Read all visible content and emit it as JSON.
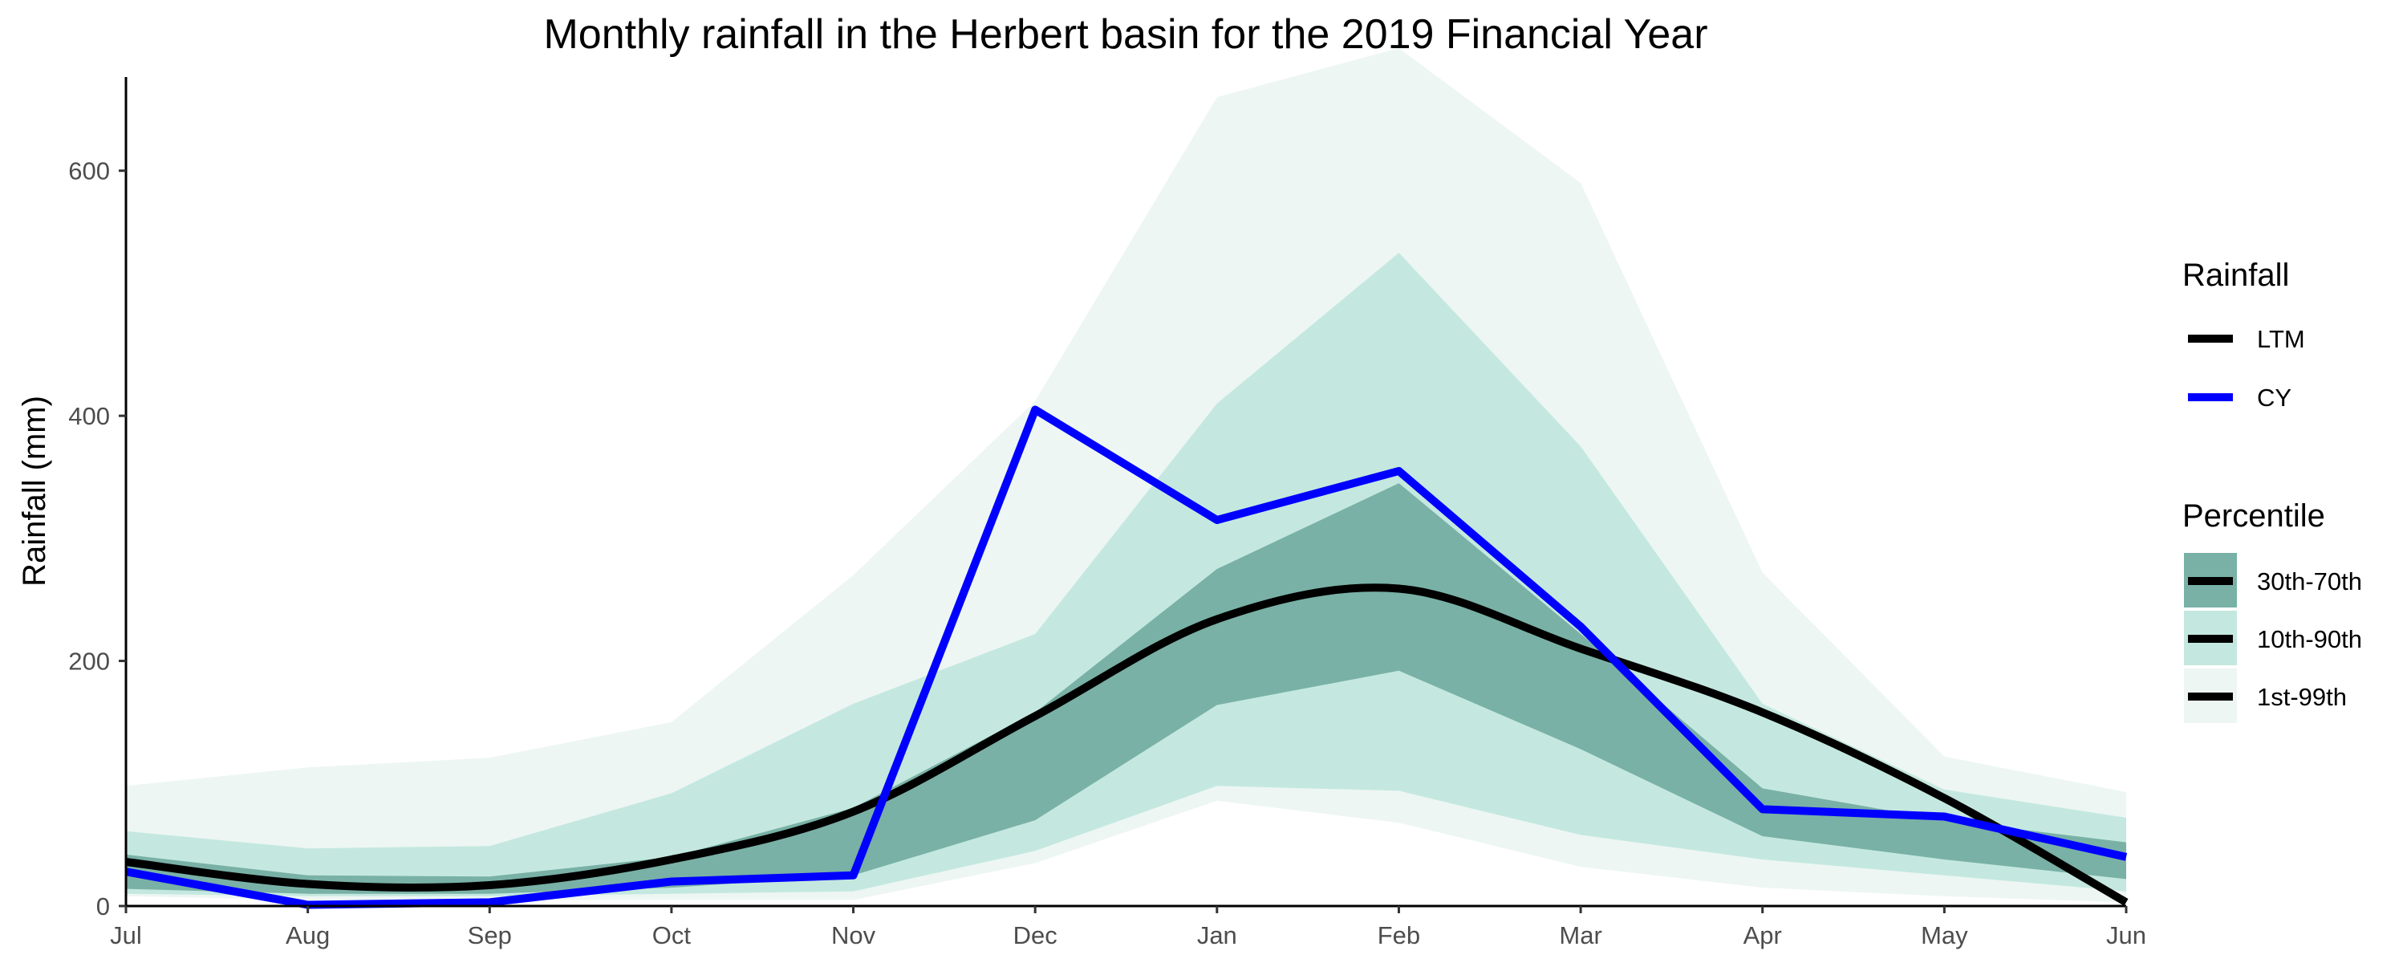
{
  "chart_data": {
    "type": "area",
    "title": "Monthly rainfall in the Herbert basin for the 2019 Financial Year",
    "xlabel": "",
    "ylabel": "Rainfall (mm)",
    "x": [
      "Jul",
      "Aug",
      "Sep",
      "Oct",
      "Nov",
      "Dec",
      "Jan",
      "Feb",
      "Mar",
      "Apr",
      "May",
      "Jun"
    ],
    "ylim": [
      0,
      700
    ],
    "yticks": [
      0,
      200,
      400,
      600
    ],
    "grid": false,
    "legend_position": "right",
    "bands": [
      {
        "name": "1st-99th",
        "color": "#edf6f3",
        "lower": [
          8,
          5,
          5,
          5,
          5,
          35,
          86,
          68,
          32,
          15,
          8,
          3
        ],
        "upper": [
          98,
          113,
          121,
          150,
          270,
          412,
          660,
          700,
          590,
          272,
          122,
          93
        ]
      },
      {
        "name": "10th-90th",
        "color": "#c4e8df",
        "lower": [
          10,
          8,
          8,
          10,
          12,
          45,
          98,
          94,
          58,
          38,
          25,
          12
        ],
        "upper": [
          61,
          47,
          49,
          92,
          165,
          222,
          410,
          533,
          375,
          165,
          95,
          72
        ]
      },
      {
        "name": "30th-70th",
        "color": "#79b1a6",
        "lower": [
          14,
          10,
          10,
          15,
          25,
          70,
          164,
          192,
          128,
          57,
          38,
          22
        ],
        "upper": [
          42,
          25,
          24,
          40,
          80,
          158,
          275,
          345,
          222,
          96,
          70,
          52
        ]
      }
    ],
    "series": [
      {
        "name": "LTM",
        "color": "#000000",
        "smooth": true,
        "values": [
          36,
          18,
          17,
          38,
          77,
          155,
          234,
          259,
          210,
          158,
          88,
          3
        ]
      },
      {
        "name": "CY",
        "color": "#0000ff",
        "smooth": false,
        "values": [
          28,
          1,
          3,
          20,
          25,
          405,
          315,
          355,
          228,
          79,
          73,
          40
        ]
      }
    ],
    "legend": {
      "rainfall_title": "Rainfall",
      "percentile_title": "Percentile"
    }
  }
}
